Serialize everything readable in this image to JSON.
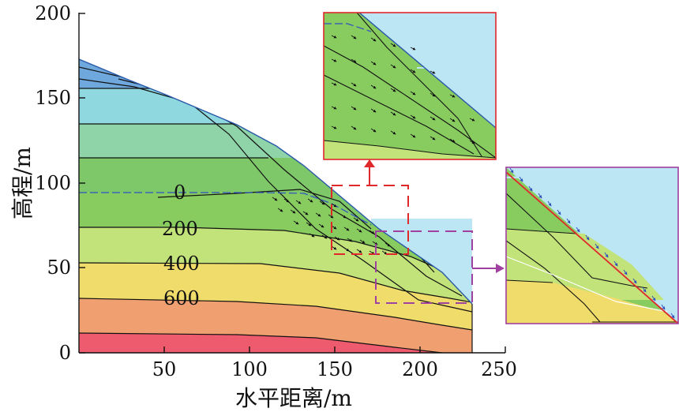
{
  "x_axis": {
    "label": "水平距离/m",
    "ticks": [
      "50",
      "100",
      "150",
      "200",
      "250"
    ],
    "range": [
      0,
      250
    ]
  },
  "y_axis": {
    "label": "高程/m",
    "ticks": [
      "0",
      "50",
      "100",
      "150",
      "200"
    ],
    "range": [
      0,
      200
    ]
  },
  "contour_labels": [
    "0",
    "200",
    "400",
    "600"
  ],
  "colors": {
    "band_top": "#6fa8dc",
    "band_1": "#8fd8e0",
    "band_2": "#8fd4a8",
    "band_3": "#7ec86a",
    "band_4": "#88cc60",
    "band_5": "#c2e27a",
    "band_6": "#f0dc6a",
    "band_7": "#f0a070",
    "band_8": "#ee5a6e",
    "water": "#bde6f4",
    "red_dash": "#e0282a",
    "purple_dash": "#a040a0",
    "water_table": "#3050c0"
  }
}
